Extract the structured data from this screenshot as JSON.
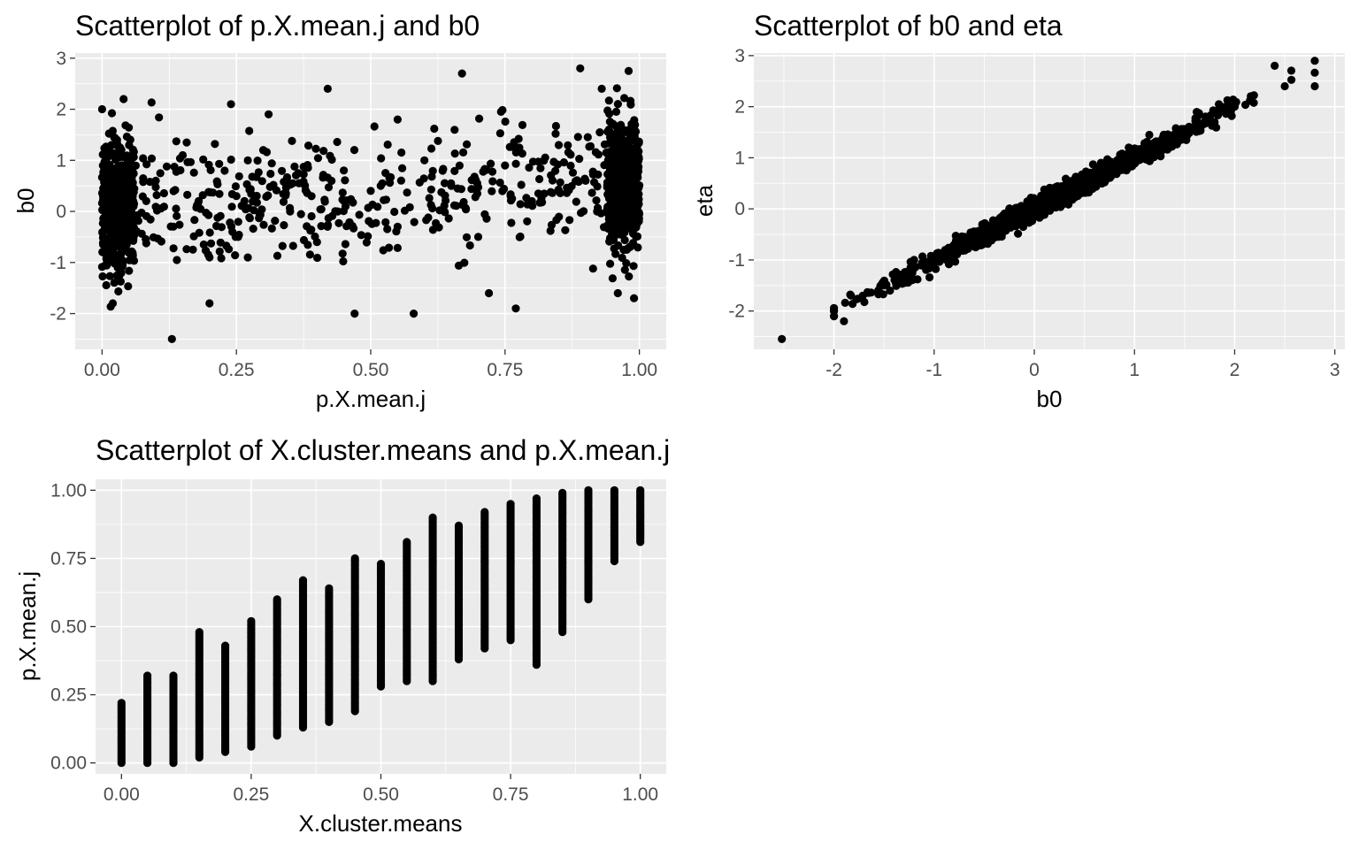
{
  "chart_data": [
    {
      "type": "scatter",
      "title": "Scatterplot of p.X.mean.j and b0",
      "xlabel": "p.X.mean.j",
      "ylabel": "b0",
      "xlim": [
        -0.05,
        1.05
      ],
      "ylim": [
        -2.7,
        3.1
      ],
      "xticks": [
        0,
        0.25,
        0.5,
        0.75,
        1
      ],
      "xtick_labels": [
        "0.00",
        "0.25",
        "0.50",
        "0.75",
        "1.00"
      ],
      "yticks": [
        -2,
        -1,
        0,
        1,
        2,
        3
      ],
      "ytick_labels": [
        "-2",
        "-1",
        "0",
        "1",
        "2",
        "3"
      ],
      "grid": true,
      "legend": "none",
      "color": "#000000",
      "panel_background": "#ebebeb",
      "series": [
        {
          "points": [
            [
              0.01,
              0.2
            ],
            [
              0.05,
              -0.4
            ],
            [
              0.1,
              0.6
            ],
            [
              0.15,
              1.1
            ],
            [
              0.2,
              -0.9
            ],
            [
              0.25,
              0.3
            ],
            [
              0.3,
              1.2
            ],
            [
              0.35,
              0.0
            ],
            [
              0.4,
              -0.6
            ],
            [
              0.45,
              0.8
            ],
            [
              0.5,
              0.4
            ],
            [
              0.55,
              -0.3
            ],
            [
              0.6,
              1.0
            ],
            [
              0.65,
              0.5
            ],
            [
              0.7,
              -0.5
            ],
            [
              0.75,
              0.9
            ],
            [
              0.8,
              0.2
            ],
            [
              0.85,
              1.3
            ],
            [
              0.9,
              0.6
            ],
            [
              0.95,
              -0.2
            ],
            [
              0.99,
              1.1
            ],
            [
              0.0,
              2.0
            ],
            [
              0.02,
              -1.8
            ],
            [
              0.13,
              -2.5
            ],
            [
              0.42,
              2.4
            ],
            [
              0.47,
              -2.0
            ],
            [
              0.58,
              -2.0
            ],
            [
              0.67,
              2.7
            ],
            [
              0.77,
              -1.9
            ],
            [
              0.89,
              2.8
            ],
            [
              0.98,
              2.75
            ],
            [
              0.99,
              -1.7
            ],
            [
              0.04,
              2.2
            ],
            [
              0.24,
              2.1
            ],
            [
              0.31,
              1.9
            ],
            [
              0.55,
              1.8
            ],
            [
              0.72,
              -1.6
            ],
            [
              0.93,
              2.4
            ],
            [
              0.96,
              -1.6
            ],
            [
              0.2,
              -1.8
            ]
          ]
        }
      ]
    },
    {
      "type": "scatter",
      "title": "Scatterplot of b0 and eta",
      "xlabel": "b0",
      "ylabel": "eta",
      "xlim": [
        -2.8,
        3.1
      ],
      "ylim": [
        -2.75,
        3.05
      ],
      "xticks": [
        -2,
        -1,
        0,
        1,
        2,
        3
      ],
      "xtick_labels": [
        "-2",
        "-1",
        "0",
        "1",
        "2",
        "3"
      ],
      "yticks": [
        -2,
        -1,
        0,
        1,
        2,
        3
      ],
      "ytick_labels": [
        "-2",
        "-1",
        "0",
        "1",
        "2",
        "3"
      ],
      "grid": true,
      "legend": "none",
      "color": "#000000",
      "panel_background": "#ebebeb",
      "series": [
        {
          "points": [
            [
              -2.52,
              -2.55
            ],
            [
              -2.0,
              -2.0
            ],
            [
              -1.9,
              -2.2
            ],
            [
              -1.5,
              -1.5
            ],
            [
              -1.0,
              -1.05
            ],
            [
              -0.5,
              -0.5
            ],
            [
              0.0,
              0.0
            ],
            [
              0.5,
              0.5
            ],
            [
              1.0,
              1.0
            ],
            [
              1.5,
              1.5
            ],
            [
              2.0,
              2.0
            ],
            [
              2.5,
              2.4
            ],
            [
              2.8,
              2.9
            ],
            [
              2.8,
              2.4
            ],
            [
              2.4,
              2.8
            ],
            [
              -1.2,
              -1.0
            ],
            [
              0.3,
              0.2
            ],
            [
              1.2,
              1.3
            ],
            [
              1.8,
              1.7
            ],
            [
              -0.8,
              -0.7
            ],
            [
              0.8,
              0.9
            ]
          ]
        }
      ]
    },
    {
      "type": "scatter",
      "title": "Scatterplot of X.cluster.means and p.X.mean.j",
      "xlabel": "X.cluster.means",
      "ylabel": "p.X.mean.j",
      "xlim": [
        -0.05,
        1.05
      ],
      "ylim": [
        -0.04,
        1.04
      ],
      "xticks": [
        0,
        0.25,
        0.5,
        0.75,
        1
      ],
      "xtick_labels": [
        "0.00",
        "0.25",
        "0.50",
        "0.75",
        "1.00"
      ],
      "yticks": [
        0,
        0.25,
        0.5,
        0.75,
        1
      ],
      "ytick_labels": [
        "0.00",
        "0.25",
        "0.50",
        "0.75",
        "1.00"
      ],
      "grid": true,
      "legend": "none",
      "color": "#000000",
      "panel_background": "#ebebeb",
      "series": [
        {
          "x_columns": [
            0,
            0.05,
            0.1,
            0.15,
            0.2,
            0.25,
            0.3,
            0.35,
            0.4,
            0.45,
            0.5,
            0.55,
            0.6,
            0.65,
            0.7,
            0.75,
            0.8,
            0.85,
            0.9,
            0.95,
            1.0
          ],
          "ranges": [
            [
              0.0,
              0.22
            ],
            [
              0.0,
              0.32
            ],
            [
              0.0,
              0.32
            ],
            [
              0.02,
              0.48
            ],
            [
              0.04,
              0.43
            ],
            [
              0.06,
              0.52
            ],
            [
              0.1,
              0.6
            ],
            [
              0.13,
              0.67
            ],
            [
              0.15,
              0.64
            ],
            [
              0.19,
              0.75
            ],
            [
              0.28,
              0.73
            ],
            [
              0.3,
              0.81
            ],
            [
              0.3,
              0.9
            ],
            [
              0.38,
              0.87
            ],
            [
              0.42,
              0.92
            ],
            [
              0.45,
              0.95
            ],
            [
              0.36,
              0.97
            ],
            [
              0.48,
              0.99
            ],
            [
              0.6,
              1.0
            ],
            [
              0.74,
              1.0
            ],
            [
              0.81,
              1.0
            ]
          ]
        }
      ]
    }
  ]
}
